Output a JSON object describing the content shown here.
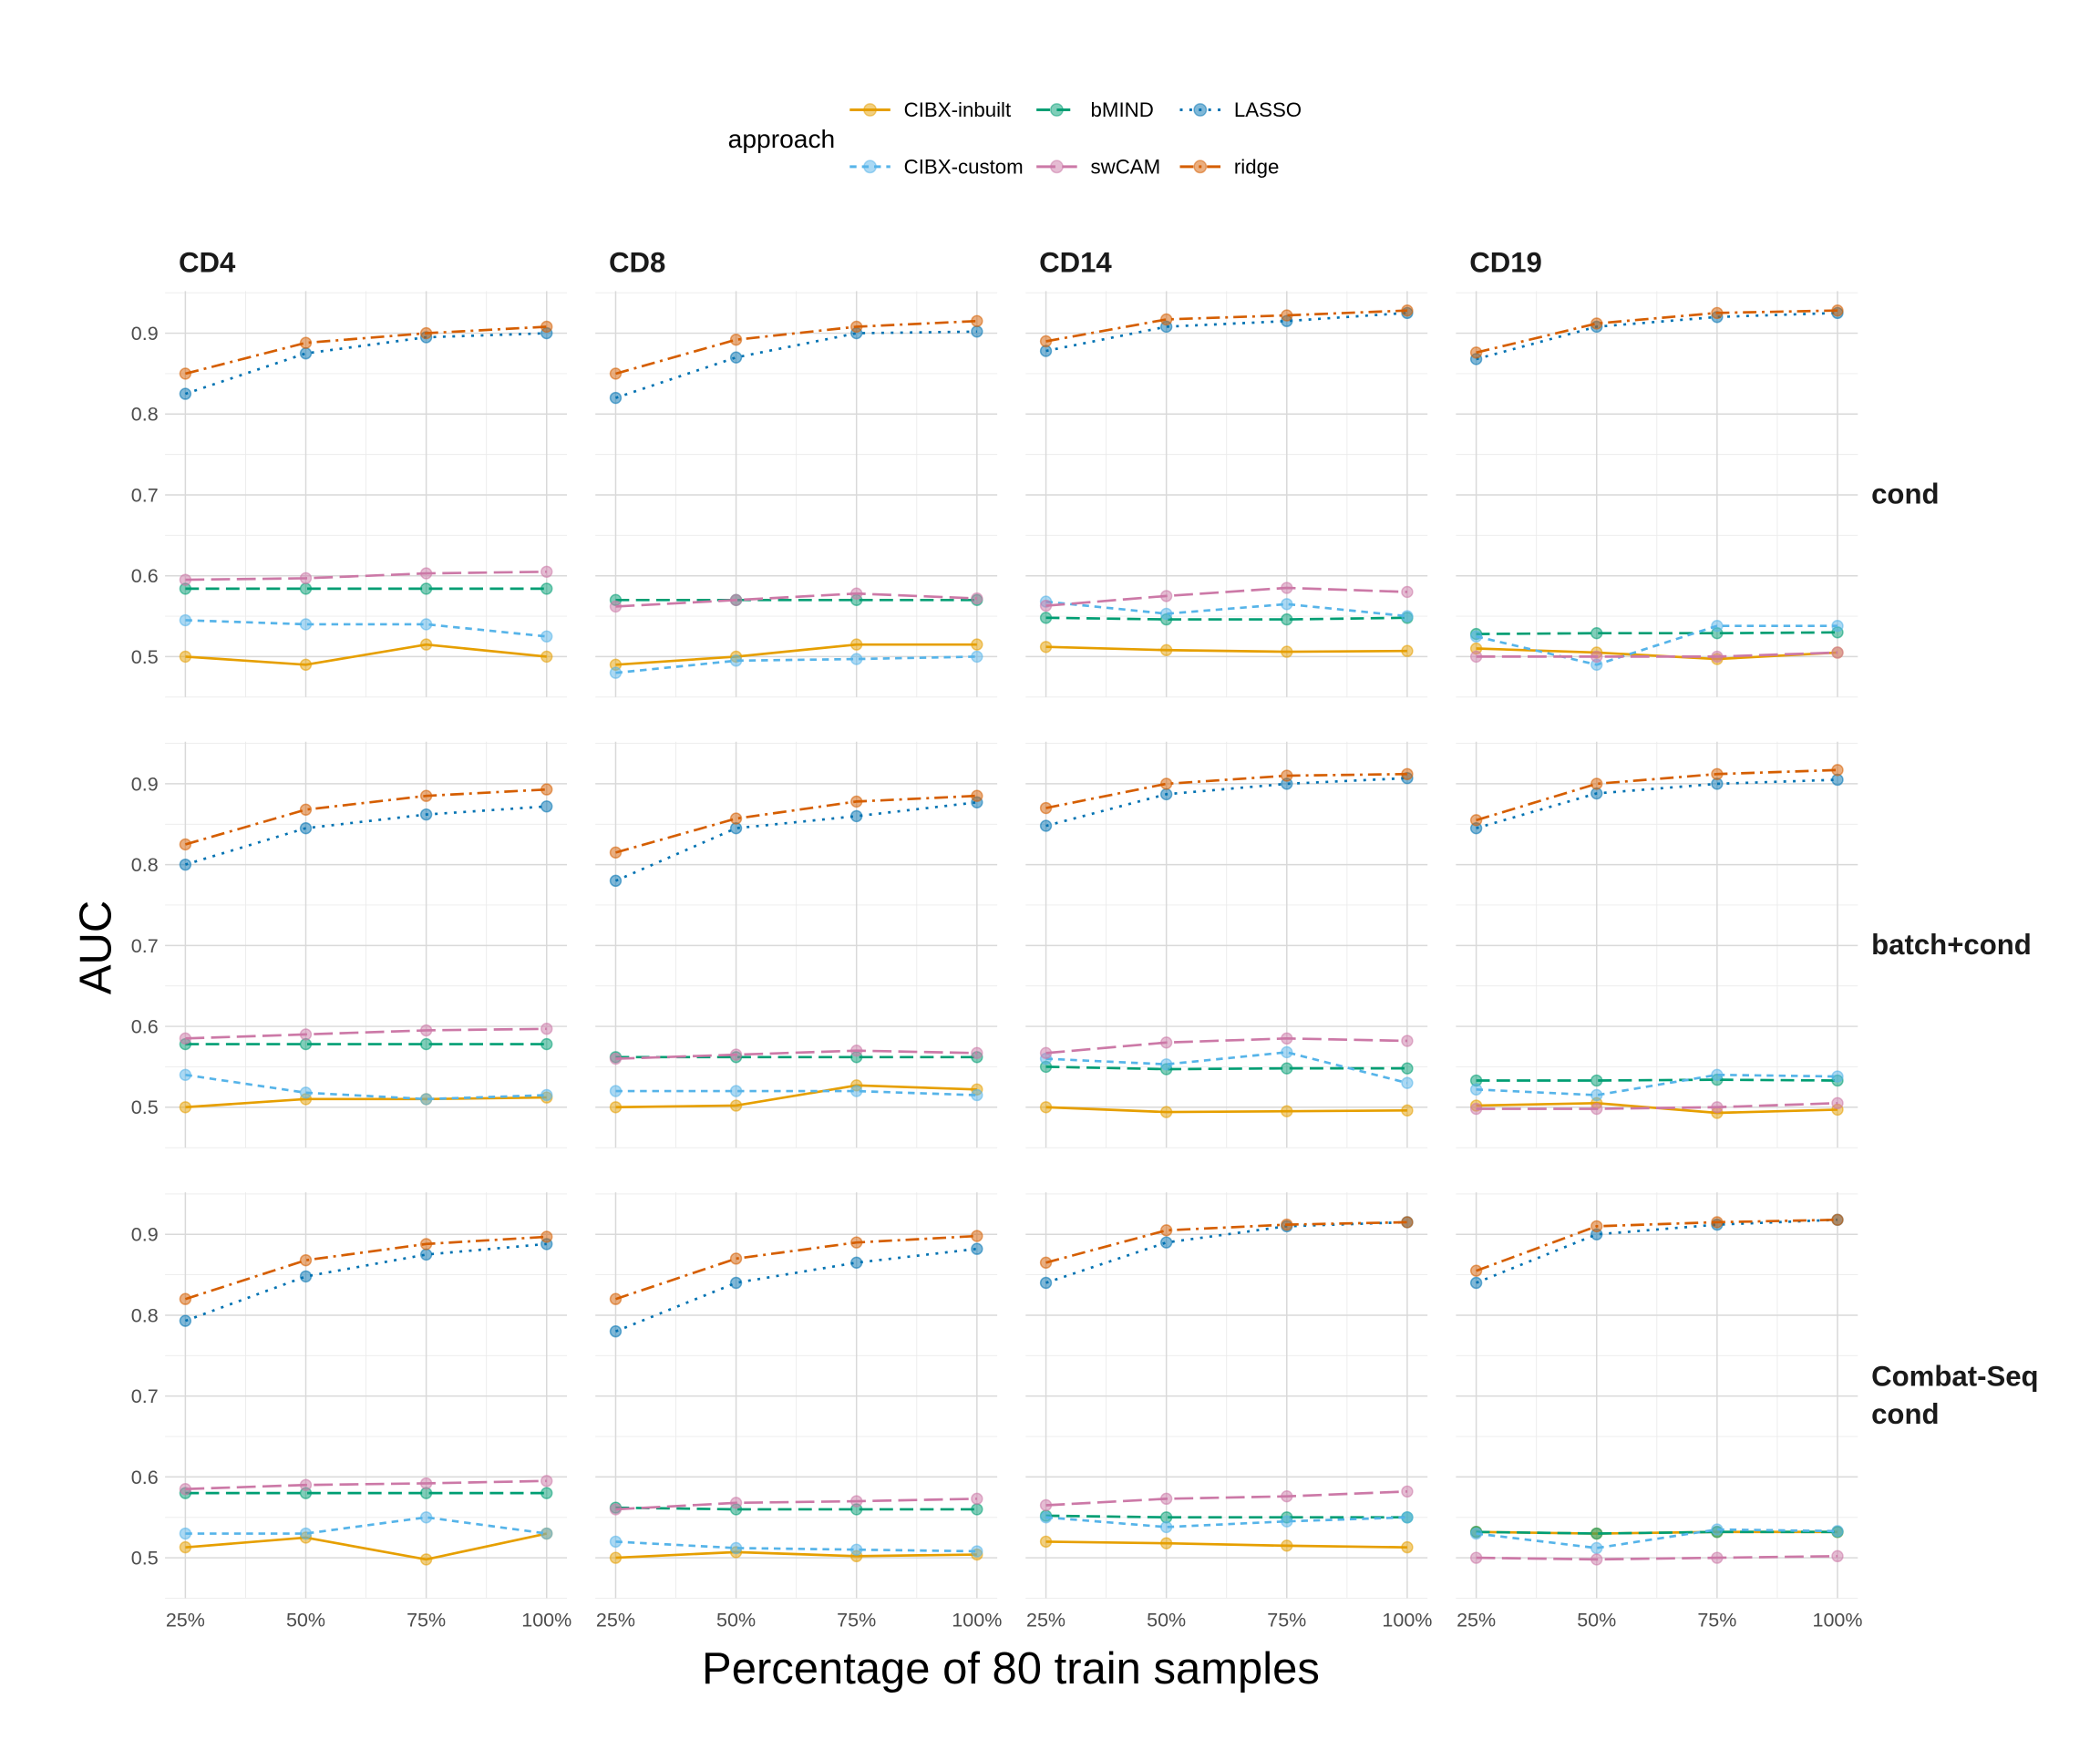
{
  "chart_data": {
    "type": "line",
    "xlabel": "Percentage of 80 train samples",
    "ylabel": "AUC",
    "legend": {
      "title": "approach",
      "placement": "top"
    },
    "x": [
      25,
      50,
      75,
      100
    ],
    "x_tick_labels": [
      "25%",
      "50%",
      "75%",
      "100%"
    ],
    "y_ticks": [
      0.5,
      0.6,
      0.7,
      0.8,
      0.9
    ],
    "y_tick_labels": [
      "0.5",
      "0.6",
      "0.7",
      "0.8",
      "0.9"
    ],
    "ylim": [
      0.45,
      0.952
    ],
    "grid": true,
    "columns": [
      "CD4",
      "CD8",
      "CD14",
      "CD19"
    ],
    "rows": [
      [
        "cond"
      ],
      [
        "batch+cond"
      ],
      [
        "Combat-Seq",
        "cond"
      ]
    ],
    "series_meta": [
      {
        "name": "CIBX-inbuilt",
        "color": "#E69F00",
        "dash": "none"
      },
      {
        "name": "bMIND",
        "color": "#009E73",
        "dash": "10,5"
      },
      {
        "name": "LASSO",
        "color": "#0072B2",
        "dash": "2,5"
      },
      {
        "name": "CIBX-custom",
        "color": "#56B4E9",
        "dash": "5,4"
      },
      {
        "name": "swCAM",
        "color": "#CC79A7",
        "dash": "14,5"
      },
      {
        "name": "ridge",
        "color": "#D55E00",
        "dash": "10,4,2,4"
      }
    ],
    "panels": [
      [
        {
          "CIBX-inbuilt": [
            0.5,
            0.49,
            0.515,
            0.5
          ],
          "CIBX-custom": [
            0.545,
            0.54,
            0.54,
            0.525
          ],
          "bMIND": [
            0.584,
            0.584,
            0.584,
            0.584
          ],
          "swCAM": [
            0.595,
            0.597,
            0.603,
            0.605
          ],
          "LASSO": [
            0.825,
            0.875,
            0.895,
            0.9
          ],
          "ridge": [
            0.85,
            0.888,
            0.9,
            0.908
          ]
        },
        {
          "CIBX-inbuilt": [
            0.49,
            0.5,
            0.515,
            0.515
          ],
          "CIBX-custom": [
            0.48,
            0.495,
            0.497,
            0.5
          ],
          "bMIND": [
            0.57,
            0.57,
            0.57,
            0.57
          ],
          "swCAM": [
            0.562,
            0.57,
            0.578,
            0.572
          ],
          "LASSO": [
            0.82,
            0.87,
            0.9,
            0.902
          ],
          "ridge": [
            0.85,
            0.892,
            0.908,
            0.915
          ]
        },
        {
          "CIBX-inbuilt": [
            0.512,
            0.508,
            0.506,
            0.507
          ],
          "CIBX-custom": [
            0.568,
            0.553,
            0.565,
            0.55
          ],
          "bMIND": [
            0.548,
            0.546,
            0.546,
            0.548
          ],
          "swCAM": [
            0.563,
            0.575,
            0.585,
            0.58
          ],
          "LASSO": [
            0.878,
            0.908,
            0.915,
            0.925
          ],
          "ridge": [
            0.89,
            0.917,
            0.922,
            0.928
          ]
        },
        {
          "CIBX-inbuilt": [
            0.51,
            0.505,
            0.497,
            0.505
          ],
          "CIBX-custom": [
            0.525,
            0.49,
            0.538,
            0.538
          ],
          "bMIND": [
            0.528,
            0.529,
            0.529,
            0.53
          ],
          "swCAM": [
            0.5,
            0.5,
            0.5,
            0.505
          ],
          "LASSO": [
            0.868,
            0.908,
            0.92,
            0.925
          ],
          "ridge": [
            0.876,
            0.912,
            0.925,
            0.928
          ]
        }
      ],
      [
        {
          "CIBX-inbuilt": [
            0.5,
            0.51,
            0.51,
            0.512
          ],
          "CIBX-custom": [
            0.54,
            0.518,
            0.51,
            0.515
          ],
          "bMIND": [
            0.578,
            0.578,
            0.578,
            0.578
          ],
          "swCAM": [
            0.585,
            0.59,
            0.595,
            0.597
          ],
          "LASSO": [
            0.8,
            0.845,
            0.862,
            0.872
          ],
          "ridge": [
            0.825,
            0.868,
            0.885,
            0.893
          ]
        },
        {
          "CIBX-inbuilt": [
            0.5,
            0.502,
            0.527,
            0.522
          ],
          "CIBX-custom": [
            0.52,
            0.52,
            0.52,
            0.515
          ],
          "bMIND": [
            0.562,
            0.562,
            0.562,
            0.562
          ],
          "swCAM": [
            0.56,
            0.565,
            0.57,
            0.567
          ],
          "LASSO": [
            0.78,
            0.845,
            0.86,
            0.877
          ],
          "ridge": [
            0.815,
            0.857,
            0.878,
            0.885
          ]
        },
        {
          "CIBX-inbuilt": [
            0.5,
            0.494,
            0.495,
            0.496
          ],
          "CIBX-custom": [
            0.56,
            0.553,
            0.568,
            0.53
          ],
          "bMIND": [
            0.55,
            0.547,
            0.548,
            0.548
          ],
          "swCAM": [
            0.567,
            0.58,
            0.585,
            0.582
          ],
          "LASSO": [
            0.848,
            0.887,
            0.9,
            0.907
          ],
          "ridge": [
            0.87,
            0.9,
            0.91,
            0.912
          ]
        },
        {
          "CIBX-inbuilt": [
            0.502,
            0.505,
            0.493,
            0.497
          ],
          "CIBX-custom": [
            0.522,
            0.515,
            0.54,
            0.538
          ],
          "bMIND": [
            0.533,
            0.533,
            0.534,
            0.533
          ],
          "swCAM": [
            0.498,
            0.498,
            0.5,
            0.505
          ],
          "LASSO": [
            0.845,
            0.888,
            0.9,
            0.905
          ],
          "ridge": [
            0.855,
            0.9,
            0.912,
            0.917
          ]
        }
      ],
      [
        {
          "CIBX-inbuilt": [
            0.513,
            0.525,
            0.498,
            0.53
          ],
          "CIBX-custom": [
            0.53,
            0.53,
            0.55,
            0.53
          ],
          "bMIND": [
            0.58,
            0.58,
            0.58,
            0.58
          ],
          "swCAM": [
            0.585,
            0.59,
            0.592,
            0.595
          ],
          "LASSO": [
            0.793,
            0.848,
            0.875,
            0.888
          ],
          "ridge": [
            0.82,
            0.868,
            0.888,
            0.897
          ]
        },
        {
          "CIBX-inbuilt": [
            0.5,
            0.507,
            0.502,
            0.504
          ],
          "CIBX-custom": [
            0.52,
            0.512,
            0.51,
            0.508
          ],
          "bMIND": [
            0.562,
            0.56,
            0.56,
            0.56
          ],
          "swCAM": [
            0.56,
            0.568,
            0.57,
            0.573
          ],
          "LASSO": [
            0.78,
            0.84,
            0.865,
            0.882
          ],
          "ridge": [
            0.82,
            0.87,
            0.89,
            0.898
          ]
        },
        {
          "CIBX-inbuilt": [
            0.52,
            0.518,
            0.515,
            0.513
          ],
          "CIBX-custom": [
            0.55,
            0.538,
            0.545,
            0.55
          ],
          "bMIND": [
            0.552,
            0.55,
            0.55,
            0.55
          ],
          "swCAM": [
            0.565,
            0.573,
            0.576,
            0.582
          ],
          "LASSO": [
            0.84,
            0.89,
            0.91,
            0.915
          ],
          "ridge": [
            0.865,
            0.905,
            0.912,
            0.915
          ]
        },
        {
          "CIBX-inbuilt": [
            0.532,
            0.53,
            0.532,
            0.532
          ],
          "CIBX-custom": [
            0.53,
            0.512,
            0.535,
            0.533
          ],
          "bMIND": [
            0.532,
            0.53,
            0.532,
            0.532
          ],
          "swCAM": [
            0.5,
            0.498,
            0.5,
            0.502
          ],
          "LASSO": [
            0.84,
            0.9,
            0.912,
            0.918
          ],
          "ridge": [
            0.855,
            0.91,
            0.915,
            0.918
          ]
        }
      ]
    ]
  }
}
